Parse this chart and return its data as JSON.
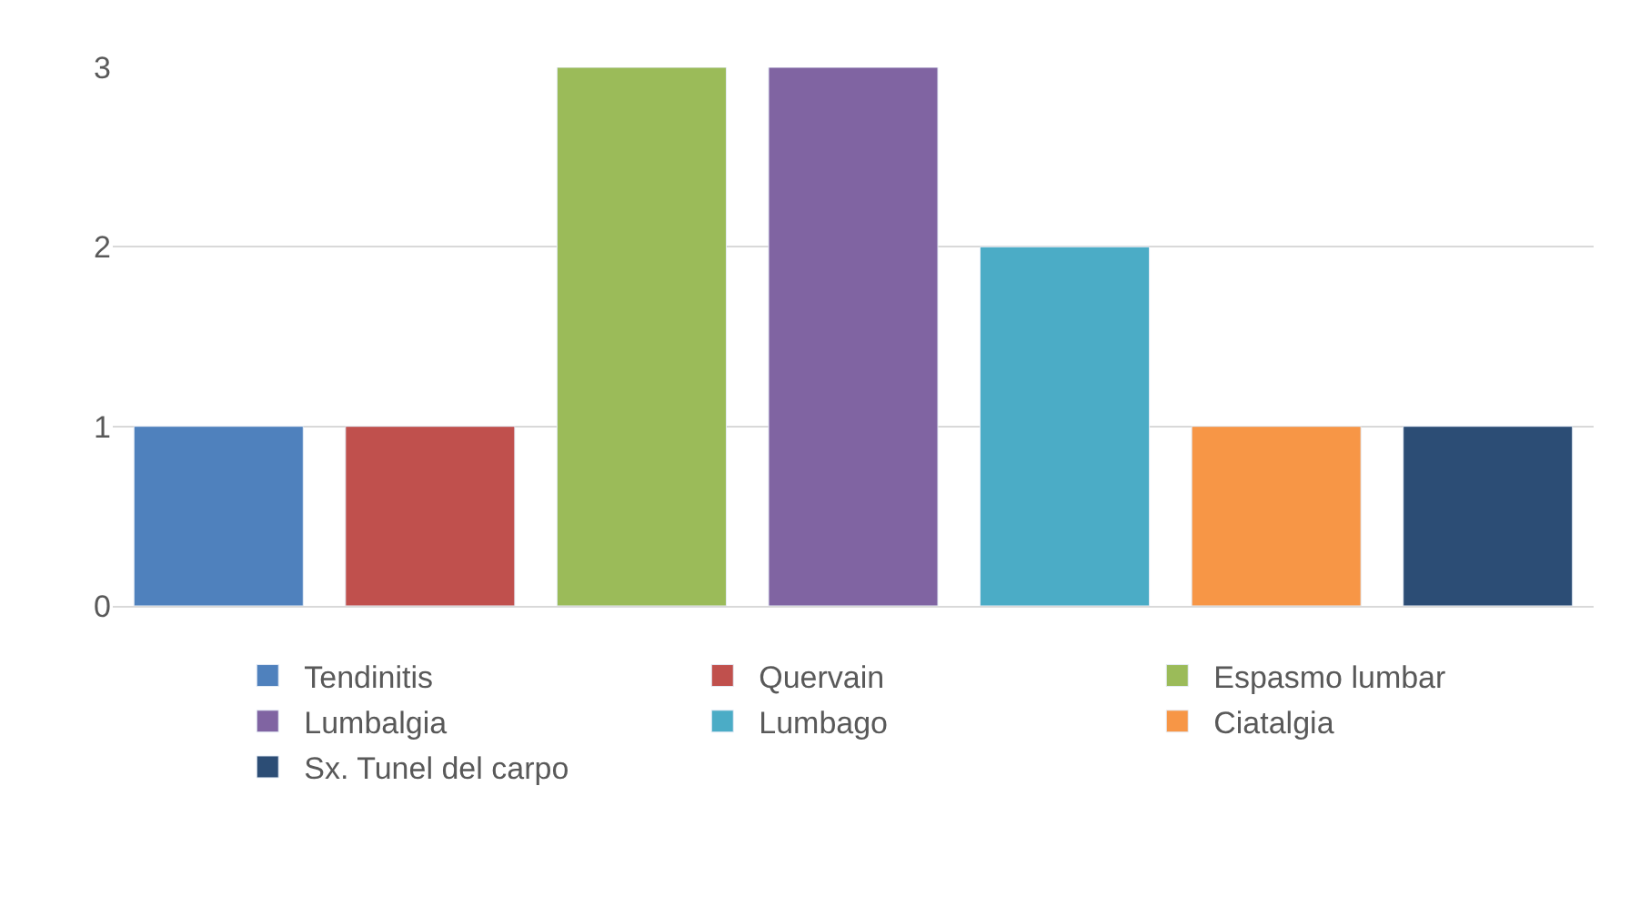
{
  "chart_data": {
    "type": "bar",
    "categories": [
      null
    ],
    "series": [
      {
        "name": "Tendinitis",
        "color": "#4f81bd",
        "values": [
          1
        ]
      },
      {
        "name": "Quervain",
        "color": "#c0504d",
        "values": [
          1
        ]
      },
      {
        "name": "Espasmo lumbar",
        "color": "#9bbb59",
        "values": [
          3
        ]
      },
      {
        "name": "Lumbalgia",
        "color": "#8064a2",
        "values": [
          3
        ]
      },
      {
        "name": "Lumbago",
        "color": "#4bacc6",
        "values": [
          2
        ]
      },
      {
        "name": "Ciatalgia",
        "color": "#f79646",
        "values": [
          1
        ]
      },
      {
        "name": "Sx. Tunel del carpo",
        "color": "#2c4d75",
        "values": [
          1
        ]
      }
    ],
    "ylim": [
      0,
      3
    ],
    "yticks": [
      0,
      1,
      2,
      3
    ],
    "grid": "y",
    "legend": "bottom",
    "tick_labels": "y"
  }
}
